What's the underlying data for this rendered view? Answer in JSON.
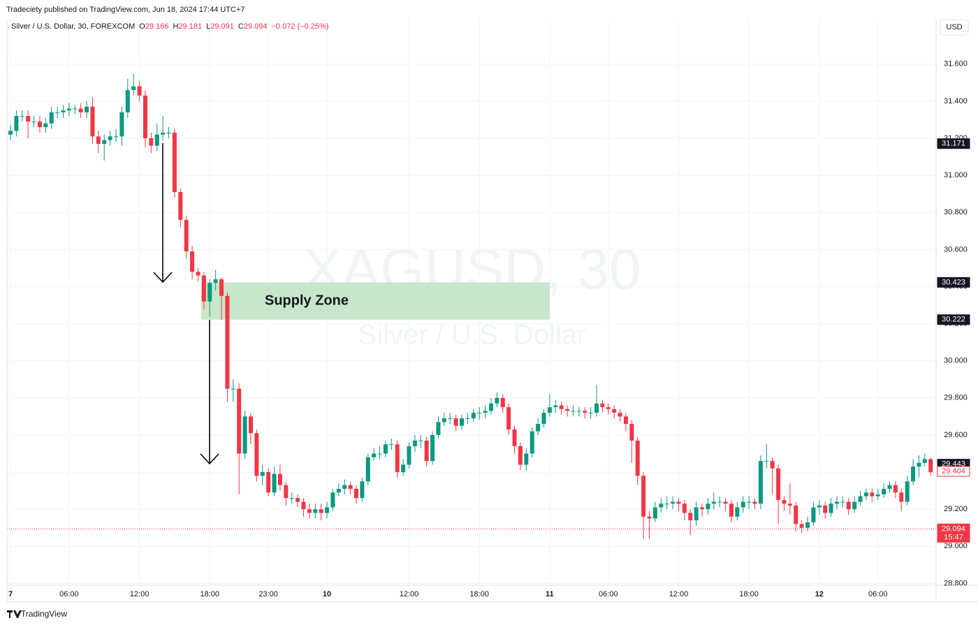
{
  "header": {
    "published": "Tradeciety published on TradingView.com, Jun 18, 2024 17:44 UTC+7",
    "logo": "TradingView"
  },
  "chart_data": {
    "type": "candlestick",
    "legend": {
      "symbol": "Silver / U.S. Dollar, 30, FOREXCOM",
      "o_label": "O",
      "o": 29.166,
      "h_label": "H",
      "h": 29.181,
      "l_label": "L",
      "l": 29.091,
      "c_label": "C",
      "c": 29.094,
      "change": "−0.072 (−0.25%)"
    },
    "currency": "USD",
    "watermark": {
      "title": "XAGUSD, 30",
      "subtitle": "Silver / U.S. Dollar"
    },
    "up_color": "#089981",
    "down_color": "#f23645",
    "grid": true,
    "ylim": [
      28.7,
      31.84
    ],
    "yticks": [
      {
        "value": 28.8,
        "label": "28.800"
      },
      {
        "value": 29.0,
        "label": "29.000"
      },
      {
        "value": 29.2,
        "label": "29.200"
      },
      {
        "value": 29.4,
        "label": "29.400"
      },
      {
        "value": 29.6,
        "label": "29.600"
      },
      {
        "value": 29.8,
        "label": "29.800"
      },
      {
        "value": 30.0,
        "label": "30.000"
      },
      {
        "value": 30.2,
        "label": "30.200"
      },
      {
        "value": 30.4,
        "label": "30.400"
      },
      {
        "value": 30.6,
        "label": "30.600"
      },
      {
        "value": 30.8,
        "label": "30.800"
      },
      {
        "value": 31.0,
        "label": "31.000"
      },
      {
        "value": 31.2,
        "label": "31.200"
      },
      {
        "value": 31.4,
        "label": "31.400"
      },
      {
        "value": 31.6,
        "label": "31.600"
      }
    ],
    "categories": [
      "7",
      null,
      null,
      null,
      null,
      null,
      null,
      null,
      null,
      null,
      "06:00",
      null,
      null,
      null,
      null,
      null,
      null,
      null,
      null,
      null,
      null,
      null,
      "12:00",
      null,
      null,
      null,
      null,
      null,
      null,
      null,
      null,
      null,
      null,
      null,
      "18:00",
      null,
      null,
      null,
      null,
      null,
      null,
      null,
      null,
      null,
      "23:00",
      null,
      null,
      null,
      null,
      null,
      null,
      null,
      null,
      null,
      "10",
      null,
      null,
      null,
      null,
      null,
      null,
      null,
      null,
      null,
      null,
      null,
      null,
      null,
      "12:00",
      null,
      null,
      null,
      null,
      null,
      null,
      null,
      null,
      null,
      null,
      null,
      "18:00",
      null,
      null,
      null,
      null,
      null,
      null,
      null,
      null,
      null,
      null,
      null,
      "11",
      null,
      null,
      null,
      null,
      null,
      null,
      null,
      null,
      null,
      "06:00",
      null,
      null,
      null,
      null,
      null,
      null,
      null,
      null,
      null,
      null,
      null,
      "12:00",
      null,
      null,
      null,
      null,
      null,
      null,
      null,
      null,
      null,
      null,
      null,
      "18:00",
      null,
      null,
      null,
      null,
      null,
      null,
      null,
      null,
      null,
      null,
      null,
      "12",
      null,
      null,
      null,
      null,
      null,
      null,
      null,
      null,
      null,
      "06:00",
      null,
      null,
      null,
      null,
      null,
      null,
      null,
      null,
      null
    ],
    "open": [
      31.22,
      31.24,
      31.32,
      31.32,
      31.29,
      31.29,
      31.26,
      31.28,
      31.34,
      31.34,
      31.35,
      31.36,
      31.36,
      31.34,
      31.37,
      31.21,
      31.17,
      31.19,
      31.21,
      31.21,
      31.34,
      31.46,
      31.48,
      31.43,
      31.2,
      31.16,
      31.22,
      31.23,
      31.23,
      30.91,
      30.76,
      30.59,
      30.48,
      30.46,
      30.32,
      30.42,
      30.44,
      30.35,
      29.85,
      29.85,
      29.5,
      29.7,
      29.61,
      29.38,
      29.4,
      29.29,
      29.39,
      29.33,
      29.26,
      29.26,
      29.24,
      29.2,
      29.18,
      29.2,
      29.18,
      29.21,
      29.29,
      29.31,
      29.33,
      29.31,
      29.26,
      29.35,
      29.48,
      29.5,
      29.5,
      29.55,
      29.55,
      29.4,
      29.44,
      29.54,
      29.57,
      29.57,
      29.46,
      29.6,
      29.67,
      29.69,
      29.69,
      29.65,
      29.69,
      29.69,
      29.72,
      29.72,
      29.73,
      29.77,
      29.8,
      29.75,
      29.63,
      29.54,
      29.44,
      29.5,
      29.62,
      29.66,
      29.72,
      29.75,
      29.76,
      29.74,
      29.73,
      29.73,
      29.73,
      29.72,
      29.72,
      29.77,
      29.75,
      29.74,
      29.72,
      29.7,
      29.66,
      29.57,
      29.38,
      29.16,
      29.15,
      29.21,
      29.23,
      29.23,
      29.24,
      29.23,
      29.18,
      29.14,
      29.21,
      29.2,
      29.23,
      29.24,
      29.24,
      29.23,
      29.16,
      29.21,
      29.24,
      29.24,
      29.23,
      29.46,
      29.46,
      29.42,
      29.25,
      29.23,
      29.22,
      29.12,
      29.1,
      29.13,
      29.21,
      29.22,
      29.18,
      29.23,
      29.24,
      29.24,
      29.2,
      29.24,
      29.27,
      29.29,
      29.27,
      29.28,
      29.31,
      29.33,
      29.29,
      29.24,
      29.35,
      29.43,
      29.45,
      29.47
    ],
    "high": [
      31.27,
      31.35,
      31.35,
      31.35,
      31.32,
      31.32,
      31.31,
      31.37,
      31.37,
      31.38,
      31.39,
      31.38,
      31.39,
      31.4,
      31.42,
      31.24,
      31.22,
      31.24,
      31.25,
      31.37,
      31.52,
      31.55,
      31.51,
      31.46,
      31.23,
      31.28,
      31.32,
      31.26,
      31.25,
      30.93,
      30.78,
      30.62,
      30.5,
      30.48,
      30.44,
      30.49,
      30.45,
      30.37,
      29.9,
      29.88,
      29.73,
      29.72,
      29.63,
      29.44,
      29.42,
      29.43,
      29.44,
      29.35,
      29.29,
      29.28,
      29.26,
      29.23,
      29.23,
      29.23,
      29.24,
      29.31,
      29.34,
      29.36,
      29.35,
      29.33,
      29.37,
      29.5,
      29.53,
      29.54,
      29.57,
      29.58,
      29.57,
      29.47,
      29.56,
      29.6,
      29.6,
      29.59,
      29.62,
      29.7,
      29.72,
      29.72,
      29.71,
      29.71,
      29.72,
      29.74,
      29.75,
      29.76,
      29.8,
      29.83,
      29.82,
      29.77,
      29.65,
      29.56,
      29.53,
      29.64,
      29.69,
      29.74,
      29.82,
      29.79,
      29.78,
      29.76,
      29.76,
      29.75,
      29.75,
      29.75,
      29.87,
      29.79,
      29.77,
      29.76,
      29.74,
      29.72,
      29.68,
      29.59,
      29.4,
      29.19,
      29.24,
      29.26,
      29.27,
      29.27,
      29.26,
      29.25,
      29.2,
      29.24,
      29.23,
      29.26,
      29.29,
      29.27,
      29.26,
      29.25,
      29.24,
      29.27,
      29.27,
      29.26,
      29.49,
      29.55,
      29.48,
      29.44,
      29.27,
      29.34,
      29.24,
      29.14,
      29.16,
      29.24,
      29.25,
      29.24,
      29.26,
      29.27,
      29.27,
      29.26,
      29.27,
      29.3,
      29.31,
      29.31,
      29.31,
      29.34,
      29.35,
      29.35,
      29.31,
      29.38,
      29.47,
      29.49,
      29.5,
      29.48
    ],
    "low": [
      31.19,
      31.21,
      31.29,
      31.2,
      31.26,
      31.23,
      31.23,
      31.25,
      31.31,
      31.31,
      31.32,
      31.33,
      31.31,
      31.31,
      31.17,
      31.12,
      31.08,
      31.16,
      31.18,
      31.16,
      31.31,
      31.43,
      31.4,
      31.15,
      31.12,
      31.13,
      31.19,
      31.2,
      30.88,
      30.72,
      30.55,
      30.44,
      30.43,
      30.28,
      30.24,
      30.38,
      30.22,
      29.78,
      29.78,
      29.28,
      29.47,
      29.55,
      29.35,
      29.33,
      29.27,
      29.27,
      29.3,
      29.22,
      29.23,
      29.21,
      29.16,
      29.15,
      29.15,
      29.14,
      29.15,
      29.19,
      29.27,
      29.28,
      29.28,
      29.23,
      29.24,
      29.33,
      29.46,
      29.47,
      29.48,
      29.52,
      29.37,
      29.38,
      29.42,
      29.51,
      29.53,
      29.43,
      29.44,
      29.58,
      29.65,
      29.66,
      29.62,
      29.63,
      29.66,
      29.67,
      29.68,
      29.69,
      29.71,
      29.75,
      29.72,
      29.6,
      29.5,
      29.41,
      29.41,
      29.48,
      29.6,
      29.64,
      29.7,
      29.72,
      29.71,
      29.7,
      29.7,
      29.7,
      29.69,
      29.69,
      29.7,
      29.72,
      29.71,
      29.69,
      29.67,
      29.62,
      29.45,
      29.33,
      29.04,
      29.04,
      29.13,
      29.18,
      29.2,
      29.2,
      29.19,
      29.14,
      29.06,
      29.11,
      29.16,
      29.17,
      29.2,
      29.21,
      29.19,
      29.13,
      29.14,
      29.18,
      29.2,
      29.2,
      29.2,
      29.42,
      29.28,
      29.12,
      29.19,
      29.17,
      29.08,
      29.07,
      29.08,
      29.11,
      29.17,
      29.15,
      29.16,
      29.2,
      29.21,
      29.17,
      29.18,
      29.22,
      29.25,
      29.24,
      29.25,
      29.26,
      29.29,
      29.26,
      29.19,
      29.22,
      29.33,
      29.37,
      29.43,
      29.38
    ],
    "close": [
      31.24,
      31.32,
      31.32,
      31.29,
      31.29,
      31.26,
      31.28,
      31.34,
      31.34,
      31.35,
      31.36,
      31.36,
      31.34,
      31.37,
      31.21,
      31.17,
      31.19,
      31.21,
      31.21,
      31.34,
      31.46,
      31.48,
      31.43,
      31.2,
      31.16,
      31.22,
      31.23,
      31.23,
      30.91,
      30.76,
      30.59,
      30.48,
      30.46,
      30.32,
      30.42,
      30.44,
      30.35,
      29.85,
      29.85,
      29.5,
      29.7,
      29.61,
      29.38,
      29.4,
      29.29,
      29.39,
      29.33,
      29.26,
      29.26,
      29.24,
      29.2,
      29.18,
      29.2,
      29.18,
      29.21,
      29.29,
      29.31,
      29.33,
      29.31,
      29.26,
      29.35,
      29.48,
      29.5,
      29.5,
      29.55,
      29.55,
      29.4,
      29.44,
      29.54,
      29.57,
      29.57,
      29.46,
      29.6,
      29.67,
      29.69,
      29.69,
      29.65,
      29.69,
      29.69,
      29.72,
      29.72,
      29.73,
      29.77,
      29.8,
      29.75,
      29.63,
      29.54,
      29.44,
      29.5,
      29.62,
      29.66,
      29.72,
      29.75,
      29.76,
      29.74,
      29.73,
      29.73,
      29.73,
      29.72,
      29.72,
      29.77,
      29.75,
      29.74,
      29.72,
      29.7,
      29.66,
      29.57,
      29.38,
      29.16,
      29.15,
      29.21,
      29.23,
      29.23,
      29.24,
      29.23,
      29.18,
      29.14,
      29.21,
      29.2,
      29.23,
      29.24,
      29.24,
      29.23,
      29.16,
      29.21,
      29.24,
      29.24,
      29.23,
      29.46,
      29.46,
      29.42,
      29.25,
      29.23,
      29.22,
      29.12,
      29.1,
      29.13,
      29.21,
      29.22,
      29.18,
      29.23,
      29.24,
      29.24,
      29.2,
      29.24,
      29.27,
      29.29,
      29.27,
      29.28,
      29.31,
      29.33,
      29.29,
      29.24,
      29.35,
      29.43,
      29.45,
      29.47,
      29.4
    ],
    "zone": {
      "label": "Supply Zone",
      "top": 30.423,
      "bottom": 30.222,
      "start": 33,
      "end": 92,
      "color": "#c8e6c9"
    },
    "price_labels": [
      {
        "value": 31.171,
        "style": "dark"
      },
      {
        "value": 30.423,
        "style": "dark"
      },
      {
        "value": 30.222,
        "style": "dark"
      },
      {
        "value": 29.443,
        "style": "dark"
      },
      {
        "value": 29.404,
        "style": "outline"
      },
      {
        "value": 29.094,
        "style": "red",
        "countdown": "15:47"
      }
    ]
  }
}
